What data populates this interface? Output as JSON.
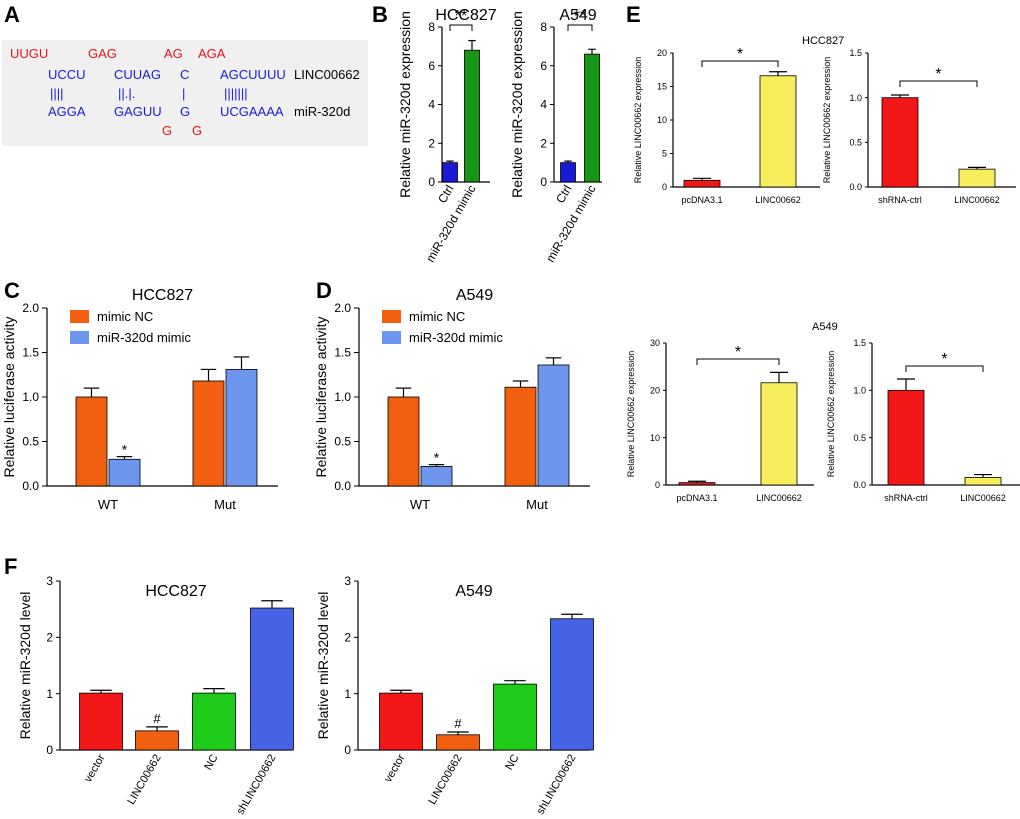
{
  "colors": {
    "seq_red": "#e8141b",
    "seq_blue": "#1a1adc",
    "orange": "#f06010",
    "light_blue": "#6f96ee",
    "red": "#f21818",
    "yellow": "#f6ee5c",
    "green": "#1ecb18",
    "royal_blue": "#4463e6",
    "dark_blue": "#1919d8",
    "dark_green": "#169816",
    "panel_bg": "#f0f0f0"
  },
  "panels": {
    "A": {
      "letter": "A",
      "rows": {
        "top_red": [
          "UUGU",
          "GAG",
          "AG",
          "AGA"
        ],
        "top_blue": [
          "UCCU",
          "CUUAG",
          "C",
          "AGCUUUU"
        ],
        "pairs": [
          "||||",
          "||.|.",
          "|",
          "|||||||"
        ],
        "bottom_blue": [
          "AGGA",
          "GAGUU",
          "G",
          "UCGAAAA"
        ],
        "bottom_red": [
          "G",
          "G"
        ]
      },
      "labels": [
        "LINC00662",
        "miR-320d"
      ]
    },
    "B": {
      "letter": "B"
    },
    "C": {
      "letter": "C"
    },
    "D": {
      "letter": "D"
    },
    "E": {
      "letter": "E",
      "group_labels": [
        "HCC827",
        "A549"
      ]
    },
    "F": {
      "letter": "F"
    }
  },
  "chart_data": [
    {
      "id": "B1",
      "type": "bar",
      "title": "HCC827",
      "ylabel": "Relative miR-320d expression",
      "ylim": [
        0,
        8
      ],
      "yticks": [
        "0",
        "2",
        "4",
        "6",
        "8"
      ],
      "categories": [
        "Ctrl",
        "miR-320d mimic"
      ],
      "values": [
        1.0,
        6.8
      ],
      "errors": [
        0.08,
        0.5
      ],
      "sig": [
        {
          "from": 0,
          "to": 1,
          "label": "**"
        }
      ]
    },
    {
      "id": "B2",
      "type": "bar",
      "title": "A549",
      "ylabel": "Relative miR-320d expression",
      "ylim": [
        0,
        8
      ],
      "yticks": [
        "0",
        "2",
        "4",
        "6",
        "8"
      ],
      "categories": [
        "Ctrl",
        "miR-320d mimic"
      ],
      "values": [
        1.0,
        6.6
      ],
      "errors": [
        0.08,
        0.25
      ],
      "sig": [
        {
          "from": 0,
          "to": 1,
          "label": "**"
        }
      ]
    },
    {
      "id": "C",
      "type": "bar",
      "title": "HCC827",
      "ylabel": "Relative luciferase activity",
      "ylim": [
        0,
        2.0
      ],
      "yticks": [
        "0.0",
        "0.5",
        "1.0",
        "1.5",
        "2.0"
      ],
      "categories": [
        "WT",
        "Mut"
      ],
      "series": [
        {
          "name": "mimic NC",
          "values": [
            1.0,
            1.18
          ],
          "errors": [
            0.1,
            0.13
          ]
        },
        {
          "name": "miR-320d mimic",
          "values": [
            0.3,
            1.31
          ],
          "errors": [
            0.03,
            0.14
          ]
        }
      ],
      "annotations": [
        {
          "category": 0,
          "series": 1,
          "label": "*"
        }
      ]
    },
    {
      "id": "D",
      "type": "bar",
      "title": "A549",
      "ylabel": "Relative luciferase activity",
      "ylim": [
        0,
        2.0
      ],
      "yticks": [
        "0.0",
        "0.5",
        "1.0",
        "1.5",
        "2.0"
      ],
      "categories": [
        "WT",
        "Mut"
      ],
      "series": [
        {
          "name": "mimic NC",
          "values": [
            1.0,
            1.11
          ],
          "errors": [
            0.1,
            0.07
          ]
        },
        {
          "name": "miR-320d mimic",
          "values": [
            0.22,
            1.36
          ],
          "errors": [
            0.02,
            0.08
          ]
        }
      ],
      "annotations": [
        {
          "category": 0,
          "series": 1,
          "label": "*"
        }
      ]
    },
    {
      "id": "E1",
      "type": "bar",
      "title": "",
      "ylabel": "Relative LINC00662 expression",
      "ylim": [
        0,
        20
      ],
      "yticks": [
        "0",
        "5",
        "10",
        "15",
        "20"
      ],
      "categories": [
        "pcDNA3.1",
        "LINC00662"
      ],
      "values": [
        1.0,
        16.6
      ],
      "errors": [
        0.3,
        0.6
      ],
      "sig": [
        {
          "from": 0,
          "to": 1,
          "label": "*"
        }
      ]
    },
    {
      "id": "E2",
      "type": "bar",
      "title": "",
      "ylabel": "Relative LINC00662 expression",
      "ylim": [
        0,
        1.5
      ],
      "yticks": [
        "0.0",
        "0.5",
        "1.0",
        "1.5"
      ],
      "categories": [
        "shRNA-ctrl",
        "LINC00662"
      ],
      "values": [
        1.0,
        0.2
      ],
      "errors": [
        0.03,
        0.02
      ],
      "sig": [
        {
          "from": 0,
          "to": 1,
          "label": "*"
        }
      ]
    },
    {
      "id": "E3",
      "type": "bar",
      "title": "",
      "ylabel": "Relative LINC00662 expression",
      "ylim": [
        0,
        30
      ],
      "yticks": [
        "0",
        "10",
        "20",
        "30"
      ],
      "categories": [
        "pcDNA3.1",
        "LINC00662"
      ],
      "values": [
        0.5,
        21.6
      ],
      "errors": [
        0.3,
        2.2
      ],
      "sig": [
        {
          "from": 0,
          "to": 1,
          "label": "*"
        }
      ]
    },
    {
      "id": "E4",
      "type": "bar",
      "title": "",
      "ylabel": "Relative LINC00662 expression",
      "ylim": [
        0,
        1.5
      ],
      "yticks": [
        "0.0",
        "0.5",
        "1.0",
        "1.5"
      ],
      "categories": [
        "shRNA-ctrl",
        "LINC00662"
      ],
      "values": [
        1.0,
        0.08
      ],
      "errors": [
        0.12,
        0.03
      ],
      "sig": [
        {
          "from": 0,
          "to": 1,
          "label": "*"
        }
      ]
    },
    {
      "id": "F1",
      "type": "bar",
      "title": "HCC827",
      "ylabel": "Relative miR-320d level",
      "ylim": [
        0,
        3
      ],
      "yticks": [
        "0",
        "1",
        "2",
        "3"
      ],
      "categories": [
        "vector",
        "LINC00662",
        "NC",
        "shLINC00662"
      ],
      "values": [
        1.01,
        0.34,
        1.01,
        2.52
      ],
      "errors": [
        0.05,
        0.07,
        0.08,
        0.13
      ],
      "annotations": [
        {
          "index": 1,
          "label": "#"
        }
      ]
    },
    {
      "id": "F2",
      "type": "bar",
      "title": "A549",
      "ylabel": "Relative miR-320d level",
      "ylim": [
        0,
        3
      ],
      "yticks": [
        "0",
        "1",
        "2",
        "3"
      ],
      "categories": [
        "vector",
        "LINC00662",
        "NC",
        "shLINC00662"
      ],
      "values": [
        1.01,
        0.27,
        1.17,
        2.33
      ],
      "errors": [
        0.05,
        0.05,
        0.06,
        0.08
      ],
      "annotations": [
        {
          "index": 1,
          "label": "#"
        }
      ]
    }
  ]
}
